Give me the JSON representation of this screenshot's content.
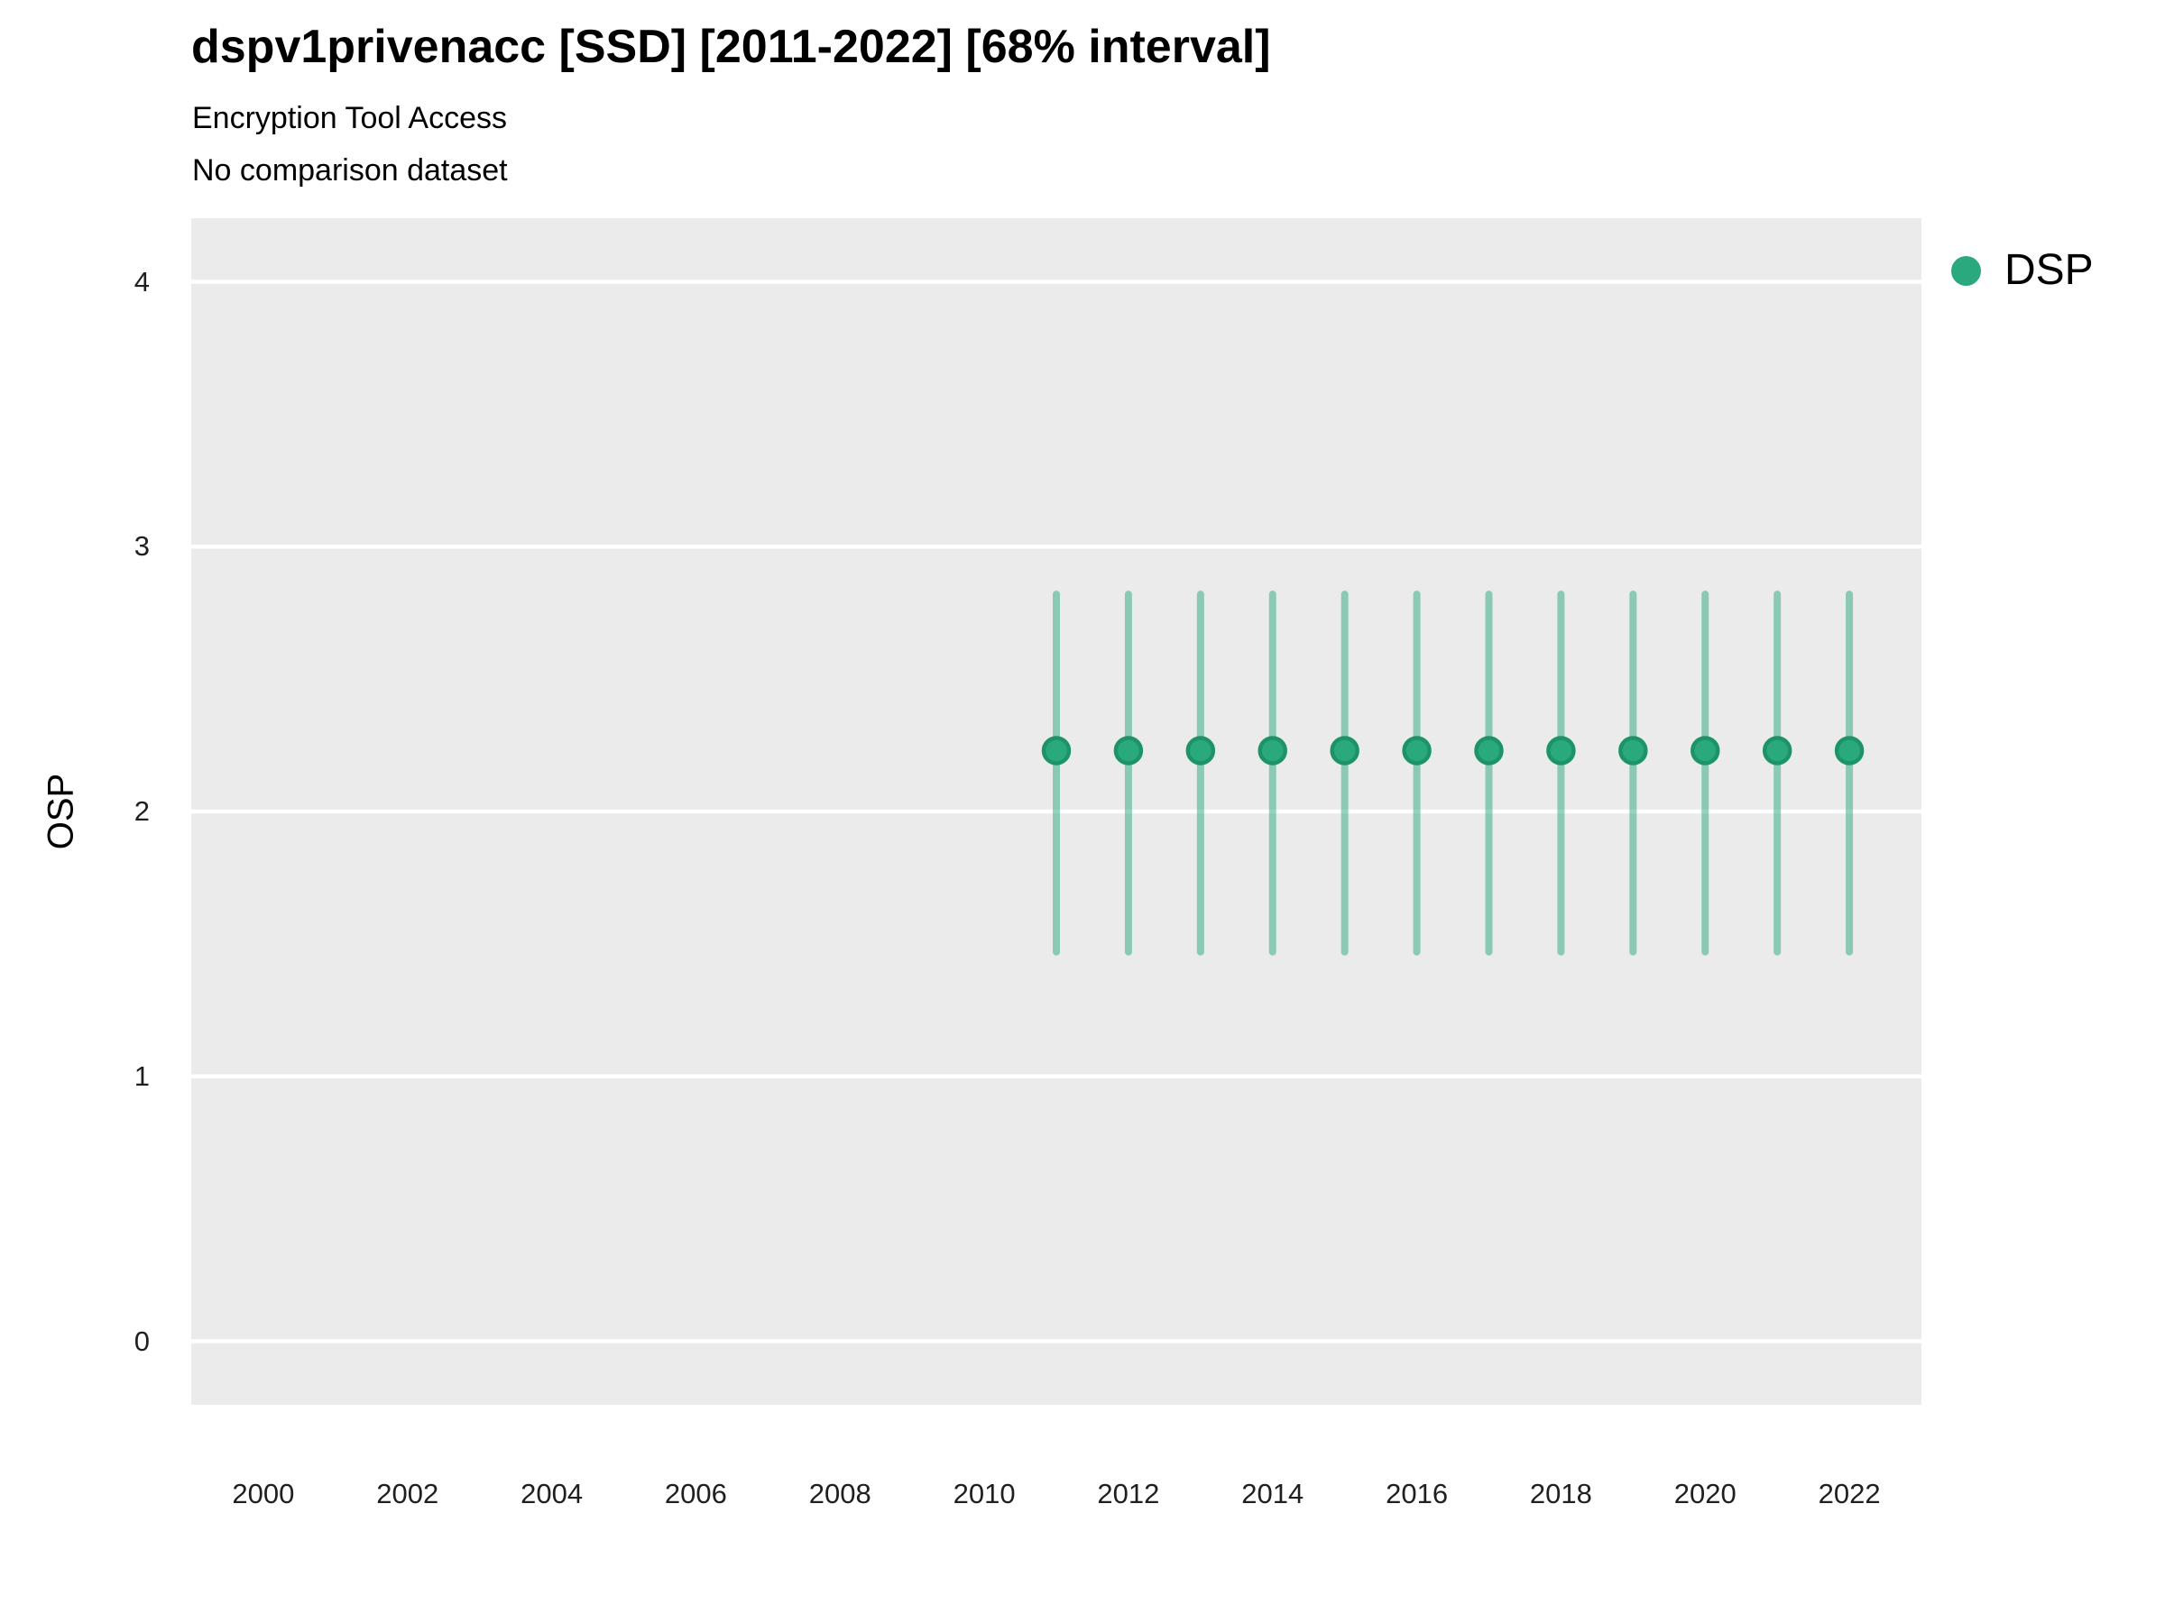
{
  "header": {
    "title": "dspv1privenacc [SSD] [2011-2022] [68% interval]",
    "subtitle": "Encryption Tool Access",
    "note": "No comparison dataset"
  },
  "colors": {
    "page_background": "#FFFFFF",
    "panel_background": "#EBEBEB",
    "gridline": "#FFFFFF",
    "title_text": "#000000",
    "tick_text": "#1F1F1F",
    "dsp_green": "#2AA87E"
  },
  "chart_data": {
    "type": "scatter",
    "mark": "pointrange",
    "title": "dspv1privenacc [SSD] [2011-2022] [68% interval]",
    "subtitle": "Encryption Tool Access",
    "note": "No comparison dataset",
    "interval": "68%",
    "xlabel": "",
    "ylabel": "OSP",
    "grid": "major-horizontal-only",
    "legend_position": "right-top",
    "x_domain": [
      1999,
      2023
    ],
    "y_domain": [
      -0.24,
      4.24
    ],
    "x_ticks": [
      2000,
      2002,
      2004,
      2006,
      2008,
      2010,
      2012,
      2014,
      2016,
      2018,
      2020,
      2022
    ],
    "y_ticks": [
      0,
      1,
      2,
      3,
      4
    ],
    "legend": {
      "entries": [
        {
          "label": "DSP",
          "color": "#2AA87E"
        }
      ]
    },
    "series": [
      {
        "name": "DSP",
        "point_color": "#2AA87E",
        "point_stroke": "#1D9468",
        "interval_color": "rgba(42, 168, 126, 0.5)",
        "points": [
          {
            "x": 2011,
            "y": 2.23,
            "lower": 1.47,
            "upper": 2.82
          },
          {
            "x": 2012,
            "y": 2.23,
            "lower": 1.47,
            "upper": 2.82
          },
          {
            "x": 2013,
            "y": 2.23,
            "lower": 1.47,
            "upper": 2.82
          },
          {
            "x": 2014,
            "y": 2.23,
            "lower": 1.47,
            "upper": 2.82
          },
          {
            "x": 2015,
            "y": 2.23,
            "lower": 1.47,
            "upper": 2.82
          },
          {
            "x": 2016,
            "y": 2.23,
            "lower": 1.47,
            "upper": 2.82
          },
          {
            "x": 2017,
            "y": 2.23,
            "lower": 1.47,
            "upper": 2.82
          },
          {
            "x": 2018,
            "y": 2.23,
            "lower": 1.47,
            "upper": 2.82
          },
          {
            "x": 2019,
            "y": 2.23,
            "lower": 1.47,
            "upper": 2.82
          },
          {
            "x": 2020,
            "y": 2.23,
            "lower": 1.47,
            "upper": 2.82
          },
          {
            "x": 2021,
            "y": 2.23,
            "lower": 1.47,
            "upper": 2.82
          },
          {
            "x": 2022,
            "y": 2.23,
            "lower": 1.47,
            "upper": 2.82
          }
        ]
      }
    ]
  }
}
